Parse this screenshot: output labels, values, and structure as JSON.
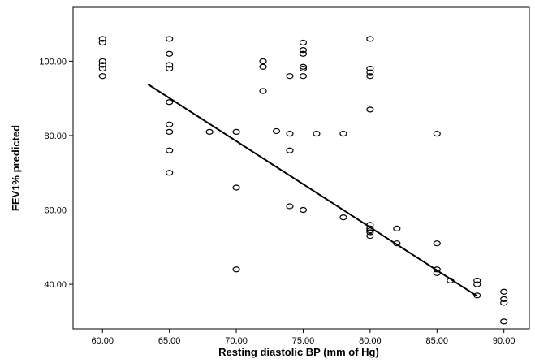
{
  "chart_data": {
    "type": "scatter",
    "title": "",
    "xlabel": "Resting diastolic BP (mm of Hg)",
    "ylabel": "FEV1% predicted",
    "xlim": [
      57.8,
      91.9
    ],
    "ylim": [
      28.0,
      114.5
    ],
    "x_ticks": [
      60,
      65,
      70,
      75,
      80,
      85,
      90
    ],
    "x_tick_labels": [
      "60.00",
      "65.00",
      "70.00",
      "75.00",
      "80.00",
      "85.00",
      "90.00"
    ],
    "y_ticks": [
      40,
      60,
      80,
      100
    ],
    "y_tick_labels": [
      "40.00",
      "60.00",
      "80.00",
      "100.00"
    ],
    "grid": false,
    "points": [
      {
        "x": 60,
        "y": 106.0
      },
      {
        "x": 60,
        "y": 105.0
      },
      {
        "x": 60,
        "y": 100.0
      },
      {
        "x": 60,
        "y": 99.0
      },
      {
        "x": 60,
        "y": 98.0
      },
      {
        "x": 60,
        "y": 96.0
      },
      {
        "x": 65,
        "y": 106.0
      },
      {
        "x": 65,
        "y": 102.0
      },
      {
        "x": 65,
        "y": 99.0
      },
      {
        "x": 65,
        "y": 98.0
      },
      {
        "x": 65,
        "y": 89.0
      },
      {
        "x": 65,
        "y": 83.0
      },
      {
        "x": 65,
        "y": 81.0
      },
      {
        "x": 65,
        "y": 76.0
      },
      {
        "x": 65,
        "y": 70.0
      },
      {
        "x": 68,
        "y": 81.0
      },
      {
        "x": 70,
        "y": 81.0
      },
      {
        "x": 70,
        "y": 66.0
      },
      {
        "x": 70,
        "y": 44.0
      },
      {
        "x": 72,
        "y": 100.0
      },
      {
        "x": 72,
        "y": 98.5
      },
      {
        "x": 72,
        "y": 92.0
      },
      {
        "x": 73,
        "y": 81.2
      },
      {
        "x": 74,
        "y": 96.0
      },
      {
        "x": 74,
        "y": 80.5
      },
      {
        "x": 74,
        "y": 76.0
      },
      {
        "x": 74,
        "y": 61.0
      },
      {
        "x": 75,
        "y": 105.0
      },
      {
        "x": 75,
        "y": 103.0
      },
      {
        "x": 75,
        "y": 102.0
      },
      {
        "x": 75,
        "y": 98.5
      },
      {
        "x": 75,
        "y": 98.0
      },
      {
        "x": 75,
        "y": 96.0
      },
      {
        "x": 75,
        "y": 60.0
      },
      {
        "x": 76,
        "y": 80.5
      },
      {
        "x": 78,
        "y": 80.5
      },
      {
        "x": 78,
        "y": 58.0
      },
      {
        "x": 80,
        "y": 106.0
      },
      {
        "x": 80,
        "y": 98.0
      },
      {
        "x": 80,
        "y": 97.0
      },
      {
        "x": 80,
        "y": 96.0
      },
      {
        "x": 80,
        "y": 87.0
      },
      {
        "x": 80,
        "y": 56.0
      },
      {
        "x": 80,
        "y": 55.0
      },
      {
        "x": 80,
        "y": 54.5
      },
      {
        "x": 80,
        "y": 54.0
      },
      {
        "x": 80,
        "y": 53.0
      },
      {
        "x": 82,
        "y": 55.0
      },
      {
        "x": 82,
        "y": 51.0
      },
      {
        "x": 85,
        "y": 80.5
      },
      {
        "x": 85,
        "y": 51.0
      },
      {
        "x": 85,
        "y": 44.0
      },
      {
        "x": 85,
        "y": 43.0
      },
      {
        "x": 86,
        "y": 41.0
      },
      {
        "x": 88,
        "y": 41.0
      },
      {
        "x": 88,
        "y": 40.0
      },
      {
        "x": 88,
        "y": 37.0
      },
      {
        "x": 90,
        "y": 38.0
      },
      {
        "x": 90,
        "y": 36.0
      },
      {
        "x": 90,
        "y": 35.0
      },
      {
        "x": 90,
        "y": 30.0
      }
    ],
    "fit_line": {
      "x": [
        63.4,
        88.0
      ],
      "y": [
        93.8,
        36.8
      ]
    }
  }
}
